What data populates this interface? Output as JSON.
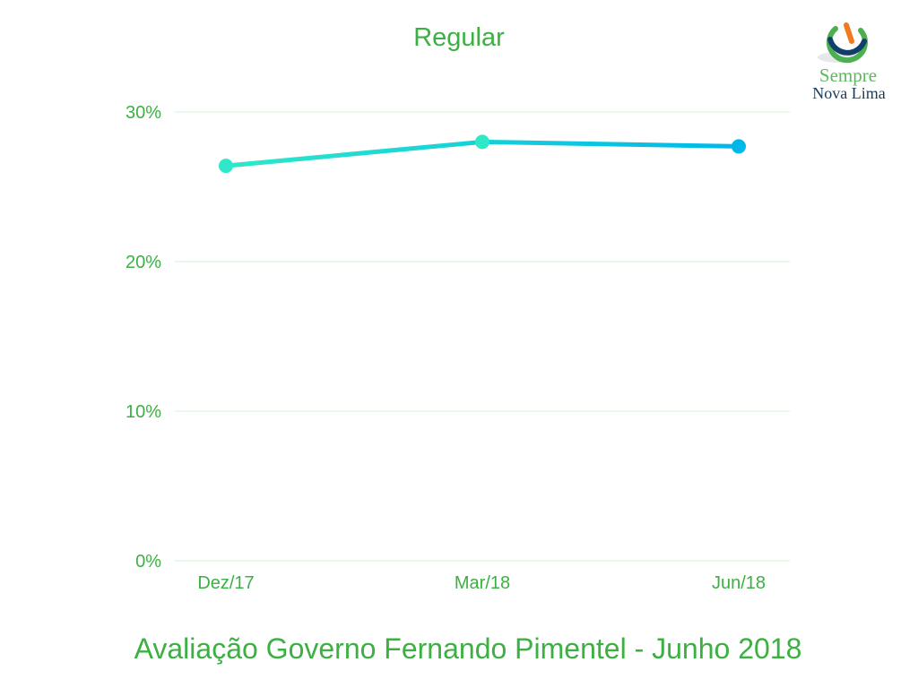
{
  "header": {
    "title": "Regular"
  },
  "footer": {
    "caption": "Avaliação Governo Fernando Pimentel - Junho 2018"
  },
  "logo": {
    "icon": "power-button-logo-icon",
    "line1": "Sempre",
    "line2": "Nova Lima",
    "colors": {
      "orange": "#f07a1e",
      "green": "#4caf50",
      "navy": "#123e6b"
    }
  },
  "chart_data": {
    "type": "line",
    "title": "Regular",
    "categories": [
      "Dez/17",
      "Mar/18",
      "Jun/18"
    ],
    "series": [
      {
        "values": [
          26.4,
          28.0,
          27.7
        ]
      }
    ],
    "ylim": [
      0,
      30
    ],
    "yticks": [
      0,
      10,
      20,
      30
    ],
    "ytick_labels": [
      "0%",
      "10%",
      "20%",
      "30%"
    ],
    "grid": true,
    "colors": {
      "line_start": "#2ee8c8",
      "line_end": "#00b7ea",
      "grid": "#d6f0d6",
      "text": "#3cb043"
    }
  }
}
